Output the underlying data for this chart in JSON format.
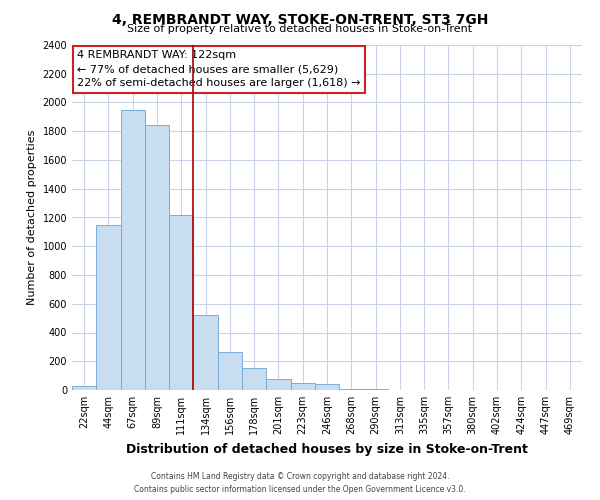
{
  "title": "4, REMBRANDT WAY, STOKE-ON-TRENT, ST3 7GH",
  "subtitle": "Size of property relative to detached houses in Stoke-on-Trent",
  "xlabel": "Distribution of detached houses by size in Stoke-on-Trent",
  "ylabel": "Number of detached properties",
  "bin_labels": [
    "22sqm",
    "44sqm",
    "67sqm",
    "89sqm",
    "111sqm",
    "134sqm",
    "156sqm",
    "178sqm",
    "201sqm",
    "223sqm",
    "246sqm",
    "268sqm",
    "290sqm",
    "313sqm",
    "335sqm",
    "357sqm",
    "380sqm",
    "402sqm",
    "424sqm",
    "447sqm",
    "469sqm"
  ],
  "bar_values": [
    30,
    1150,
    1950,
    1840,
    1220,
    520,
    265,
    150,
    80,
    50,
    40,
    10,
    5,
    2,
    0,
    0,
    0,
    0,
    0,
    0,
    0
  ],
  "bar_color": "#c9ddf0",
  "bar_edge_color": "#7aadd4",
  "vline_x": 4.5,
  "vline_color": "#aa0000",
  "annotation_title": "4 REMBRANDT WAY: 122sqm",
  "annotation_line1": "← 77% of detached houses are smaller (5,629)",
  "annotation_line2": "22% of semi-detached houses are larger (1,618) →",
  "ylim": [
    0,
    2400
  ],
  "yticks": [
    0,
    200,
    400,
    600,
    800,
    1000,
    1200,
    1400,
    1600,
    1800,
    2000,
    2200,
    2400
  ],
  "footer_line1": "Contains HM Land Registry data © Crown copyright and database right 2024.",
  "footer_line2": "Contains public sector information licensed under the Open Government Licence v3.0.",
  "background_color": "#ffffff",
  "grid_color": "#c8d4e8",
  "ann_box_color": "#cc2222",
  "title_fontsize": 10,
  "subtitle_fontsize": 8,
  "ylabel_fontsize": 8,
  "xlabel_fontsize": 9,
  "tick_fontsize": 7,
  "ann_fontsize": 8
}
